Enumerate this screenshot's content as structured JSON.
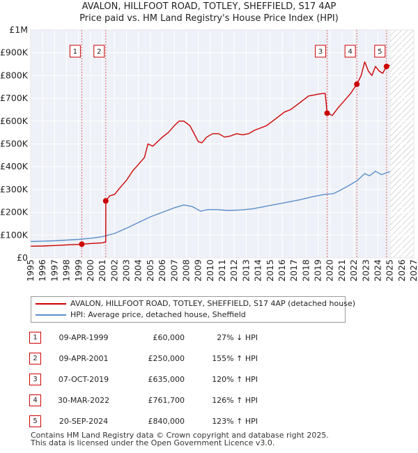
{
  "chart_data": {
    "type": "line",
    "title": "AVALON, HILLFOOT ROAD, TOTLEY, SHEFFIELD, S17 4AP",
    "subtitle": "Price paid vs. HM Land Registry's House Price Index (HPI)",
    "xlabel": "",
    "ylabel": "",
    "xlim": [
      1995,
      2027
    ],
    "ylim": [
      0,
      1000000
    ],
    "x_ticks": [
      "1995",
      "1996",
      "1997",
      "1998",
      "1999",
      "2000",
      "2001",
      "2002",
      "2003",
      "2004",
      "2005",
      "2006",
      "2007",
      "2008",
      "2009",
      "2010",
      "2011",
      "2012",
      "2013",
      "2014",
      "2015",
      "2016",
      "2017",
      "2018",
      "2019",
      "2020",
      "2021",
      "2022",
      "2023",
      "2024",
      "2025",
      "2026",
      "2027"
    ],
    "y_ticks": [
      {
        "value": 0,
        "label": "£0"
      },
      {
        "value": 100000,
        "label": "£100K"
      },
      {
        "value": 200000,
        "label": "£200K"
      },
      {
        "value": 300000,
        "label": "£300K"
      },
      {
        "value": 400000,
        "label": "£400K"
      },
      {
        "value": 500000,
        "label": "£500K"
      },
      {
        "value": 600000,
        "label": "£600K"
      },
      {
        "value": 700000,
        "label": "£700K"
      },
      {
        "value": 800000,
        "label": "£800K"
      },
      {
        "value": 900000,
        "label": "£900K"
      },
      {
        "value": 1000000,
        "label": "£1M"
      }
    ],
    "forecast_start": 2025.0,
    "series": [
      {
        "name": "AVALON, HILLFOOT ROAD, TOTLEY, SHEFFIELD, S17 4AP (detached house)",
        "color": "#cc0000",
        "points": [
          [
            1995.0,
            51000
          ],
          [
            1996.0,
            52000
          ],
          [
            1997.0,
            54000
          ],
          [
            1998.0,
            57000
          ],
          [
            1999.27,
            60000
          ],
          [
            2000.0,
            63000
          ],
          [
            2001.0,
            66000
          ],
          [
            2001.27,
            70000
          ],
          [
            2001.28,
            250000
          ],
          [
            2001.6,
            272000
          ],
          [
            2002.0,
            278000
          ],
          [
            2002.5,
            310000
          ],
          [
            2003.0,
            340000
          ],
          [
            2003.5,
            380000
          ],
          [
            2004.0,
            410000
          ],
          [
            2004.5,
            440000
          ],
          [
            2004.8,
            500000
          ],
          [
            2005.2,
            490000
          ],
          [
            2005.6,
            510000
          ],
          [
            2006.0,
            530000
          ],
          [
            2006.5,
            550000
          ],
          [
            2007.0,
            580000
          ],
          [
            2007.4,
            600000
          ],
          [
            2007.8,
            600000
          ],
          [
            2008.3,
            580000
          ],
          [
            2008.7,
            540000
          ],
          [
            2009.0,
            510000
          ],
          [
            2009.3,
            505000
          ],
          [
            2009.7,
            530000
          ],
          [
            2010.2,
            545000
          ],
          [
            2010.7,
            545000
          ],
          [
            2011.2,
            530000
          ],
          [
            2011.7,
            535000
          ],
          [
            2012.2,
            545000
          ],
          [
            2012.7,
            540000
          ],
          [
            2013.2,
            545000
          ],
          [
            2013.7,
            560000
          ],
          [
            2014.2,
            570000
          ],
          [
            2014.7,
            580000
          ],
          [
            2015.2,
            600000
          ],
          [
            2015.7,
            620000
          ],
          [
            2016.2,
            640000
          ],
          [
            2016.7,
            650000
          ],
          [
            2017.2,
            670000
          ],
          [
            2017.7,
            690000
          ],
          [
            2018.2,
            710000
          ],
          [
            2018.7,
            715000
          ],
          [
            2019.2,
            720000
          ],
          [
            2019.6,
            722000
          ],
          [
            2019.76,
            635000
          ],
          [
            2020.2,
            625000
          ],
          [
            2020.7,
            660000
          ],
          [
            2021.2,
            690000
          ],
          [
            2021.7,
            720000
          ],
          [
            2022.24,
            761700
          ],
          [
            2022.6,
            800000
          ],
          [
            2022.9,
            860000
          ],
          [
            2023.2,
            820000
          ],
          [
            2023.5,
            800000
          ],
          [
            2023.8,
            840000
          ],
          [
            2024.1,
            820000
          ],
          [
            2024.4,
            810000
          ],
          [
            2024.72,
            840000
          ],
          [
            2025.0,
            845000
          ]
        ]
      },
      {
        "name": "HPI: Average price, detached house, Sheffield",
        "color": "#5b8ec9",
        "points": [
          [
            1995.0,
            72000
          ],
          [
            1996.0,
            73000
          ],
          [
            1997.0,
            75000
          ],
          [
            1998.0,
            78000
          ],
          [
            1999.0,
            81000
          ],
          [
            2000.0,
            86000
          ],
          [
            2001.0,
            93000
          ],
          [
            2002.0,
            107000
          ],
          [
            2003.0,
            130000
          ],
          [
            2004.0,
            155000
          ],
          [
            2005.0,
            180000
          ],
          [
            2006.0,
            200000
          ],
          [
            2007.0,
            220000
          ],
          [
            2007.8,
            232000
          ],
          [
            2008.5,
            225000
          ],
          [
            2009.2,
            205000
          ],
          [
            2009.8,
            212000
          ],
          [
            2010.5,
            212000
          ],
          [
            2011.5,
            208000
          ],
          [
            2012.5,
            210000
          ],
          [
            2013.5,
            215000
          ],
          [
            2014.5,
            225000
          ],
          [
            2015.5,
            235000
          ],
          [
            2016.5,
            245000
          ],
          [
            2017.5,
            255000
          ],
          [
            2018.5,
            268000
          ],
          [
            2019.5,
            278000
          ],
          [
            2020.3,
            282000
          ],
          [
            2020.8,
            295000
          ],
          [
            2021.5,
            315000
          ],
          [
            2022.3,
            340000
          ],
          [
            2022.9,
            370000
          ],
          [
            2023.3,
            360000
          ],
          [
            2023.8,
            380000
          ],
          [
            2024.3,
            365000
          ],
          [
            2024.8,
            375000
          ],
          [
            2025.0,
            378000
          ]
        ]
      }
    ],
    "sales": [
      {
        "id": "1",
        "x": 1999.27,
        "y": 60000
      },
      {
        "id": "2",
        "x": 2001.27,
        "y": 250000
      },
      {
        "id": "3",
        "x": 2019.76,
        "y": 635000
      },
      {
        "id": "4",
        "x": 2022.24,
        "y": 761700
      },
      {
        "id": "5",
        "x": 2024.72,
        "y": 840000
      }
    ]
  },
  "legend": {
    "property_label": "AVALON, HILLFOOT ROAD, TOTLEY, SHEFFIELD, S17 4AP (detached house)",
    "hpi_label": "HPI: Average price, detached house, Sheffield",
    "property_color": "#cc0000",
    "hpi_color": "#5b8ec9"
  },
  "sales_table": [
    {
      "num": "1",
      "date": "09-APR-1999",
      "price": "£60,000",
      "hpi": "27% ↓ HPI"
    },
    {
      "num": "2",
      "date": "09-APR-2001",
      "price": "£250,000",
      "hpi": "155% ↑ HPI"
    },
    {
      "num": "3",
      "date": "07-OCT-2019",
      "price": "£635,000",
      "hpi": "120% ↑ HPI"
    },
    {
      "num": "4",
      "date": "30-MAR-2022",
      "price": "£761,700",
      "hpi": "126% ↑ HPI"
    },
    {
      "num": "5",
      "date": "20-SEP-2024",
      "price": "£840,000",
      "hpi": "123% ↑ HPI"
    }
  ],
  "footer": {
    "line1": "Contains HM Land Registry data © Crown copyright and database right 2025.",
    "line2": "This data is licensed under the Open Government Licence v3.0."
  }
}
